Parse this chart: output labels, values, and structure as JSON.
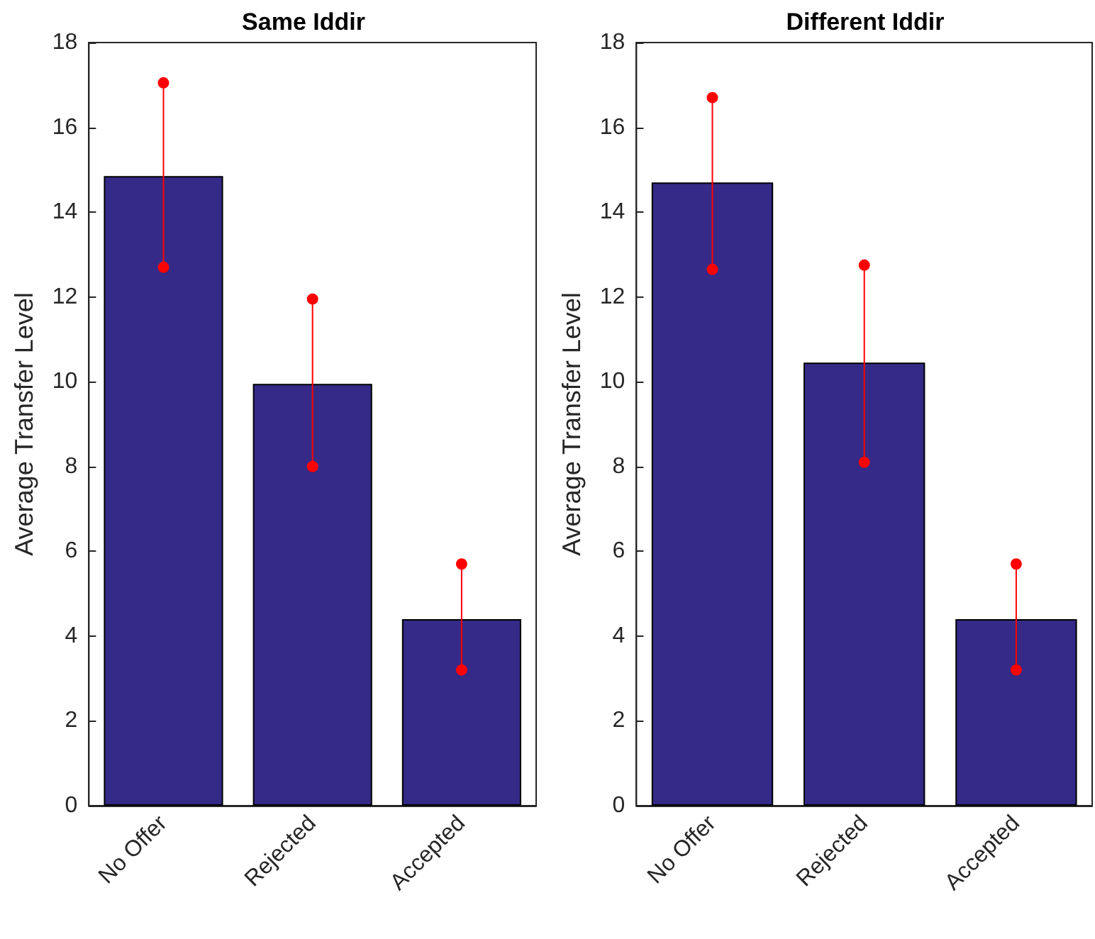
{
  "chart_data": [
    {
      "type": "bar",
      "title": "Same Iddir",
      "ylabel": "Average Transfer Level",
      "categories": [
        "No Offer",
        "Rejected",
        "Accepted"
      ],
      "values": [
        14.85,
        9.95,
        4.4
      ],
      "color": "#352a87",
      "errors": [
        [
          12.7,
          17.05
        ],
        [
          8.0,
          11.95
        ],
        [
          3.2,
          5.7
        ]
      ],
      "ylim": [
        0,
        18
      ],
      "yticks": [
        0,
        2,
        4,
        6,
        8,
        10,
        12,
        14,
        16,
        18
      ],
      "grid": false
    },
    {
      "type": "bar",
      "title": "Different Iddir",
      "ylabel": "Average Transfer Level",
      "categories": [
        "No Offer",
        "Rejected",
        "Accepted"
      ],
      "values": [
        14.7,
        10.45,
        4.4
      ],
      "color": "#352a87",
      "errors": [
        [
          12.65,
          16.7
        ],
        [
          8.1,
          12.75
        ],
        [
          3.2,
          5.7
        ]
      ],
      "ylim": [
        0,
        18
      ],
      "yticks": [
        0,
        2,
        4,
        6,
        8,
        10,
        12,
        14,
        16,
        18
      ],
      "grid": false
    }
  ]
}
